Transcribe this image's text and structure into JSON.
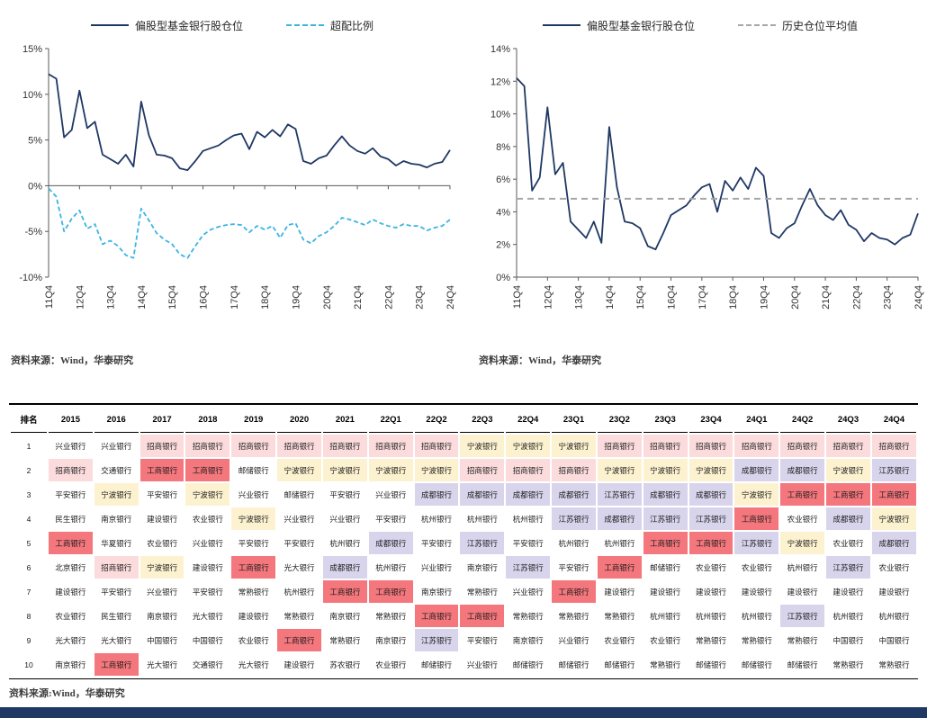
{
  "page": {
    "background": "#ffffff",
    "footer_bar_color": "#1f3864"
  },
  "chart_data": [
    {
      "type": "line",
      "title": "",
      "x_tick_labels": [
        "11Q4",
        "12Q4",
        "13Q4",
        "14Q4",
        "15Q4",
        "16Q4",
        "17Q4",
        "18Q4",
        "19Q4",
        "20Q4",
        "21Q4",
        "22Q4",
        "23Q4",
        "24Q4"
      ],
      "n_points": 53,
      "ylim": [
        -10,
        15
      ],
      "yticks": [
        15,
        10,
        5,
        0,
        -5,
        -10
      ],
      "grid": "off",
      "legend_position": "top",
      "series": [
        {
          "name": "偏股型基金银行股仓位",
          "color": "#1f3864",
          "dash": null,
          "values": [
            12.2,
            11.7,
            5.3,
            6.1,
            10.4,
            6.3,
            7.0,
            3.4,
            2.9,
            2.4,
            3.4,
            2.1,
            9.2,
            5.5,
            3.4,
            3.3,
            3.0,
            1.9,
            1.7,
            2.7,
            3.8,
            4.1,
            4.4,
            5.0,
            5.5,
            5.7,
            4.0,
            5.9,
            5.3,
            6.1,
            5.4,
            6.7,
            6.2,
            2.7,
            2.4,
            3.0,
            3.3,
            4.4,
            5.4,
            4.4,
            3.8,
            3.5,
            4.1,
            3.2,
            2.9,
            2.2,
            2.7,
            2.4,
            2.3,
            2.0,
            2.4,
            2.6,
            3.9
          ]
        },
        {
          "name": "超配比例",
          "color": "#3bb4e5",
          "dash": "5,3",
          "values": [
            -0.3,
            -1.2,
            -5.0,
            -3.6,
            -2.7,
            -4.7,
            -4.2,
            -6.4,
            -6.0,
            -6.6,
            -7.6,
            -7.9,
            -2.5,
            -3.8,
            -5.2,
            -5.9,
            -6.4,
            -7.5,
            -7.9,
            -6.6,
            -5.4,
            -4.8,
            -4.5,
            -4.3,
            -4.2,
            -4.3,
            -5.1,
            -4.4,
            -4.8,
            -4.4,
            -5.7,
            -4.3,
            -4.1,
            -5.9,
            -6.3,
            -5.5,
            -5.1,
            -4.4,
            -3.5,
            -3.7,
            -4.0,
            -4.3,
            -3.7,
            -4.1,
            -4.4,
            -4.6,
            -4.2,
            -4.4,
            -4.4,
            -4.9,
            -4.6,
            -4.4,
            -3.7
          ]
        }
      ],
      "source": "资料来源：Wind，华泰研究"
    },
    {
      "type": "line",
      "title": "",
      "x_tick_labels": [
        "11Q4",
        "12Q4",
        "13Q4",
        "14Q4",
        "15Q4",
        "16Q4",
        "17Q4",
        "18Q4",
        "19Q4",
        "20Q4",
        "21Q4",
        "22Q4",
        "23Q4",
        "24Q4"
      ],
      "n_points": 53,
      "ylim": [
        0,
        14
      ],
      "yticks": [
        14,
        12,
        10,
        8,
        6,
        4,
        2,
        0
      ],
      "grid": "off",
      "legend_position": "top",
      "series": [
        {
          "name": "偏股型基金银行股仓位",
          "color": "#1f3864",
          "dash": null,
          "values": [
            12.2,
            11.7,
            5.3,
            6.1,
            10.4,
            6.3,
            7.0,
            3.4,
            2.9,
            2.4,
            3.4,
            2.1,
            9.2,
            5.5,
            3.4,
            3.3,
            3.0,
            1.9,
            1.7,
            2.7,
            3.8,
            4.1,
            4.4,
            5.0,
            5.5,
            5.7,
            4.0,
            5.9,
            5.3,
            6.1,
            5.4,
            6.7,
            6.2,
            2.7,
            2.4,
            3.0,
            3.3,
            4.4,
            5.4,
            4.4,
            3.8,
            3.5,
            4.1,
            3.2,
            2.9,
            2.2,
            2.7,
            2.4,
            2.3,
            2.0,
            2.4,
            2.6,
            3.9
          ]
        },
        {
          "name": "历史仓位平均值",
          "color": "#a6a6a6",
          "dash": "7,5",
          "type": "hline",
          "value": 4.8
        }
      ],
      "source": "资料来源：Wind，华泰研究"
    }
  ],
  "table": {
    "columns": [
      "排名",
      "2015",
      "2016",
      "2017",
      "2018",
      "2019",
      "2020",
      "2021",
      "22Q1",
      "22Q2",
      "22Q3",
      "22Q4",
      "23Q1",
      "23Q2",
      "23Q3",
      "23Q4",
      "24Q1",
      "24Q2",
      "24Q3",
      "24Q4"
    ],
    "palette": {
      "w": "#ffffff",
      "p": "#fbdbdc",
      "r": "#f4777d",
      "y": "#fdf2d0",
      "l": "#d8d4ec"
    },
    "rows": [
      {
        "rank": "1",
        "cells": [
          [
            "兴业银行",
            "w"
          ],
          [
            "兴业银行",
            "w"
          ],
          [
            "招商银行",
            "p"
          ],
          [
            "招商银行",
            "p"
          ],
          [
            "招商银行",
            "p"
          ],
          [
            "招商银行",
            "p"
          ],
          [
            "招商银行",
            "p"
          ],
          [
            "招商银行",
            "p"
          ],
          [
            "招商银行",
            "p"
          ],
          [
            "宁波银行",
            "y"
          ],
          [
            "宁波银行",
            "y"
          ],
          [
            "宁波银行",
            "y"
          ],
          [
            "招商银行",
            "p"
          ],
          [
            "招商银行",
            "p"
          ],
          [
            "招商银行",
            "p"
          ],
          [
            "招商银行",
            "p"
          ],
          [
            "招商银行",
            "p"
          ],
          [
            "招商银行",
            "p"
          ],
          [
            "招商银行",
            "p"
          ]
        ]
      },
      {
        "rank": "2",
        "cells": [
          [
            "招商银行",
            "p"
          ],
          [
            "交通银行",
            "w"
          ],
          [
            "工商银行",
            "r"
          ],
          [
            "工商银行",
            "r"
          ],
          [
            "邮储银行",
            "w"
          ],
          [
            "宁波银行",
            "y"
          ],
          [
            "宁波银行",
            "y"
          ],
          [
            "宁波银行",
            "y"
          ],
          [
            "宁波银行",
            "y"
          ],
          [
            "招商银行",
            "p"
          ],
          [
            "招商银行",
            "p"
          ],
          [
            "招商银行",
            "p"
          ],
          [
            "宁波银行",
            "y"
          ],
          [
            "宁波银行",
            "y"
          ],
          [
            "宁波银行",
            "y"
          ],
          [
            "成都银行",
            "l"
          ],
          [
            "成都银行",
            "l"
          ],
          [
            "宁波银行",
            "y"
          ],
          [
            "江苏银行",
            "l"
          ]
        ]
      },
      {
        "rank": "3",
        "cells": [
          [
            "平安银行",
            "w"
          ],
          [
            "宁波银行",
            "y"
          ],
          [
            "平安银行",
            "w"
          ],
          [
            "宁波银行",
            "y"
          ],
          [
            "兴业银行",
            "w"
          ],
          [
            "邮储银行",
            "w"
          ],
          [
            "平安银行",
            "w"
          ],
          [
            "兴业银行",
            "w"
          ],
          [
            "成都银行",
            "l"
          ],
          [
            "成都银行",
            "l"
          ],
          [
            "成都银行",
            "l"
          ],
          [
            "成都银行",
            "l"
          ],
          [
            "江苏银行",
            "l"
          ],
          [
            "成都银行",
            "l"
          ],
          [
            "成都银行",
            "l"
          ],
          [
            "宁波银行",
            "y"
          ],
          [
            "工商银行",
            "r"
          ],
          [
            "工商银行",
            "r"
          ],
          [
            "工商银行",
            "r"
          ]
        ]
      },
      {
        "rank": "4",
        "cells": [
          [
            "民生银行",
            "w"
          ],
          [
            "南京银行",
            "w"
          ],
          [
            "建设银行",
            "w"
          ],
          [
            "农业银行",
            "w"
          ],
          [
            "宁波银行",
            "y"
          ],
          [
            "兴业银行",
            "w"
          ],
          [
            "兴业银行",
            "w"
          ],
          [
            "平安银行",
            "w"
          ],
          [
            "杭州银行",
            "w"
          ],
          [
            "杭州银行",
            "w"
          ],
          [
            "杭州银行",
            "w"
          ],
          [
            "江苏银行",
            "l"
          ],
          [
            "成都银行",
            "l"
          ],
          [
            "江苏银行",
            "l"
          ],
          [
            "江苏银行",
            "l"
          ],
          [
            "工商银行",
            "r"
          ],
          [
            "农业银行",
            "w"
          ],
          [
            "成都银行",
            "l"
          ],
          [
            "宁波银行",
            "y"
          ]
        ]
      },
      {
        "rank": "5",
        "cells": [
          [
            "工商银行",
            "r"
          ],
          [
            "华夏银行",
            "w"
          ],
          [
            "农业银行",
            "w"
          ],
          [
            "兴业银行",
            "w"
          ],
          [
            "平安银行",
            "w"
          ],
          [
            "平安银行",
            "w"
          ],
          [
            "杭州银行",
            "w"
          ],
          [
            "成都银行",
            "l"
          ],
          [
            "平安银行",
            "w"
          ],
          [
            "江苏银行",
            "l"
          ],
          [
            "平安银行",
            "w"
          ],
          [
            "杭州银行",
            "w"
          ],
          [
            "杭州银行",
            "w"
          ],
          [
            "工商银行",
            "r"
          ],
          [
            "工商银行",
            "r"
          ],
          [
            "江苏银行",
            "l"
          ],
          [
            "宁波银行",
            "y"
          ],
          [
            "农业银行",
            "w"
          ],
          [
            "成都银行",
            "l"
          ]
        ]
      },
      {
        "rank": "6",
        "cells": [
          [
            "北京银行",
            "w"
          ],
          [
            "招商银行",
            "p"
          ],
          [
            "宁波银行",
            "y"
          ],
          [
            "建设银行",
            "w"
          ],
          [
            "工商银行",
            "r"
          ],
          [
            "光大银行",
            "w"
          ],
          [
            "成都银行",
            "l"
          ],
          [
            "杭州银行",
            "w"
          ],
          [
            "兴业银行",
            "w"
          ],
          [
            "南京银行",
            "w"
          ],
          [
            "江苏银行",
            "l"
          ],
          [
            "平安银行",
            "w"
          ],
          [
            "工商银行",
            "r"
          ],
          [
            "邮储银行",
            "w"
          ],
          [
            "农业银行",
            "w"
          ],
          [
            "农业银行",
            "w"
          ],
          [
            "杭州银行",
            "w"
          ],
          [
            "江苏银行",
            "l"
          ],
          [
            "农业银行",
            "w"
          ]
        ]
      },
      {
        "rank": "7",
        "cells": [
          [
            "建设银行",
            "w"
          ],
          [
            "平安银行",
            "w"
          ],
          [
            "兴业银行",
            "w"
          ],
          [
            "平安银行",
            "w"
          ],
          [
            "常熟银行",
            "w"
          ],
          [
            "杭州银行",
            "w"
          ],
          [
            "工商银行",
            "r"
          ],
          [
            "工商银行",
            "r"
          ],
          [
            "南京银行",
            "w"
          ],
          [
            "常熟银行",
            "w"
          ],
          [
            "兴业银行",
            "w"
          ],
          [
            "工商银行",
            "r"
          ],
          [
            "建设银行",
            "w"
          ],
          [
            "建设银行",
            "w"
          ],
          [
            "建设银行",
            "w"
          ],
          [
            "建设银行",
            "w"
          ],
          [
            "建设银行",
            "w"
          ],
          [
            "建设银行",
            "w"
          ],
          [
            "建设银行",
            "w"
          ]
        ]
      },
      {
        "rank": "8",
        "cells": [
          [
            "农业银行",
            "w"
          ],
          [
            "民生银行",
            "w"
          ],
          [
            "南京银行",
            "w"
          ],
          [
            "光大银行",
            "w"
          ],
          [
            "建设银行",
            "w"
          ],
          [
            "常熟银行",
            "w"
          ],
          [
            "南京银行",
            "w"
          ],
          [
            "常熟银行",
            "w"
          ],
          [
            "工商银行",
            "r"
          ],
          [
            "工商银行",
            "r"
          ],
          [
            "常熟银行",
            "w"
          ],
          [
            "常熟银行",
            "w"
          ],
          [
            "常熟银行",
            "w"
          ],
          [
            "杭州银行",
            "w"
          ],
          [
            "杭州银行",
            "w"
          ],
          [
            "杭州银行",
            "w"
          ],
          [
            "江苏银行",
            "l"
          ],
          [
            "杭州银行",
            "w"
          ],
          [
            "杭州银行",
            "w"
          ]
        ]
      },
      {
        "rank": "9",
        "cells": [
          [
            "光大银行",
            "w"
          ],
          [
            "光大银行",
            "w"
          ],
          [
            "中国银行",
            "w"
          ],
          [
            "中国银行",
            "w"
          ],
          [
            "农业银行",
            "w"
          ],
          [
            "工商银行",
            "r"
          ],
          [
            "常熟银行",
            "w"
          ],
          [
            "南京银行",
            "w"
          ],
          [
            "江苏银行",
            "l"
          ],
          [
            "平安银行",
            "w"
          ],
          [
            "南京银行",
            "w"
          ],
          [
            "兴业银行",
            "w"
          ],
          [
            "农业银行",
            "w"
          ],
          [
            "农业银行",
            "w"
          ],
          [
            "常熟银行",
            "w"
          ],
          [
            "常熟银行",
            "w"
          ],
          [
            "常熟银行",
            "w"
          ],
          [
            "中国银行",
            "w"
          ],
          [
            "中国银行",
            "w"
          ]
        ]
      },
      {
        "rank": "10",
        "cells": [
          [
            "南京银行",
            "w"
          ],
          [
            "工商银行",
            "r"
          ],
          [
            "光大银行",
            "w"
          ],
          [
            "交通银行",
            "w"
          ],
          [
            "光大银行",
            "w"
          ],
          [
            "建设银行",
            "w"
          ],
          [
            "苏农银行",
            "w"
          ],
          [
            "农业银行",
            "w"
          ],
          [
            "邮储银行",
            "w"
          ],
          [
            "兴业银行",
            "w"
          ],
          [
            "邮储银行",
            "w"
          ],
          [
            "邮储银行",
            "w"
          ],
          [
            "邮储银行",
            "w"
          ],
          [
            "常熟银行",
            "w"
          ],
          [
            "邮储银行",
            "w"
          ],
          [
            "邮储银行",
            "w"
          ],
          [
            "邮储银行",
            "w"
          ],
          [
            "常熟银行",
            "w"
          ],
          [
            "常熟银行",
            "w"
          ]
        ]
      }
    ],
    "source": "资料来源:Wind，华泰研究"
  }
}
